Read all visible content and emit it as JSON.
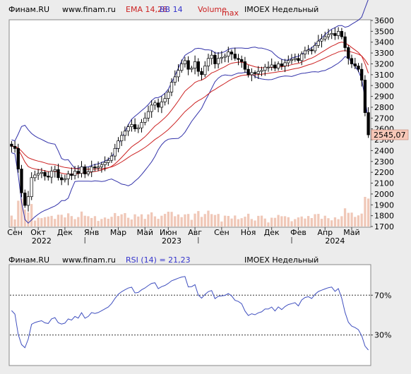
{
  "colors": {
    "background": "#ececec",
    "plot_bg": "#ffffff",
    "bollinger": "#3333aa",
    "ema": "#cc2222",
    "volume_bar": "#f0c8b8",
    "rsi_line": "#3f4fbf",
    "last_price_box": "#f7c8b8",
    "legend_ema": "#cc2222",
    "legend_bb": "#3333cc",
    "legend_volume": "#cc2222",
    "legend_rsi": "#3333cc"
  },
  "main_header": {
    "source": "Финам.RU",
    "site": "www.finam.ru",
    "ema_label": "EMA 14,28",
    "bb_label": "BB 14",
    "volume_label": "Volume",
    "max_label": "max",
    "ticker": "IMOEX Недельный"
  },
  "rsi_header": {
    "source": "Финам.RU",
    "site": "www.finam.ru",
    "rsi_label": "RSI (14) = 21,23",
    "ticker": "IMOEX Недельный"
  },
  "last_price": "2545,07",
  "chart_data": [
    {
      "type": "candlestick",
      "ylim": [
        1700,
        3600
      ],
      "y_ticks": [
        "1700",
        "1800",
        "1900",
        "2000",
        "2100",
        "2200",
        "2300",
        "2400",
        "2500",
        "2600",
        "2700",
        "2800",
        "2900",
        "3000",
        "3100",
        "3200",
        "3300",
        "3400",
        "3500",
        "3600"
      ],
      "x_ticks": [
        "Сен",
        "Окт",
        "Дек",
        "Янв",
        "Мар",
        "Май",
        "Июн",
        "Авг",
        "Сен",
        "Ноя",
        "Дек",
        "Фев",
        "Апр",
        "Май"
      ],
      "x_tick_index": [
        1,
        8,
        16,
        24,
        32,
        40,
        47,
        55,
        63,
        71,
        78,
        86,
        94,
        102
      ],
      "year_labels": [
        "2022",
        "2023",
        "2024"
      ],
      "year_index": [
        9,
        48,
        97
      ],
      "weeks": 108,
      "close": [
        2440,
        2420,
        2230,
        2010,
        1895,
        1975,
        2150,
        2175,
        2190,
        2200,
        2165,
        2155,
        2210,
        2225,
        2150,
        2130,
        2140,
        2185,
        2170,
        2210,
        2190,
        2250,
        2185,
        2205,
        2250,
        2240,
        2250,
        2270,
        2290,
        2310,
        2350,
        2420,
        2490,
        2540,
        2580,
        2620,
        2640,
        2600,
        2610,
        2660,
        2700,
        2760,
        2820,
        2840,
        2800,
        2850,
        2880,
        2940,
        3030,
        3080,
        3140,
        3200,
        3230,
        3150,
        3160,
        3220,
        3130,
        3100,
        3180,
        3250,
        3280,
        3200,
        3250,
        3260,
        3270,
        3310,
        3290,
        3250,
        3240,
        3220,
        3150,
        3100,
        3120,
        3110,
        3130,
        3140,
        3170,
        3170,
        3190,
        3160,
        3200,
        3180,
        3210,
        3230,
        3240,
        3250,
        3230,
        3290,
        3320,
        3330,
        3320,
        3370,
        3410,
        3430,
        3450,
        3470,
        3480,
        3460,
        3500,
        3450,
        3350,
        3250,
        3200,
        3180,
        3150,
        3050,
        2750,
        2545
      ],
      "volume_scale_max": 1000
    },
    {
      "type": "line",
      "series_label": "RSI (14) = 21,23",
      "ylim": [
        0,
        100
      ],
      "y_ticks": [
        "70%",
        "30%"
      ],
      "y_tick_values": [
        70,
        30
      ],
      "reference_levels": [
        70,
        30
      ]
    }
  ]
}
